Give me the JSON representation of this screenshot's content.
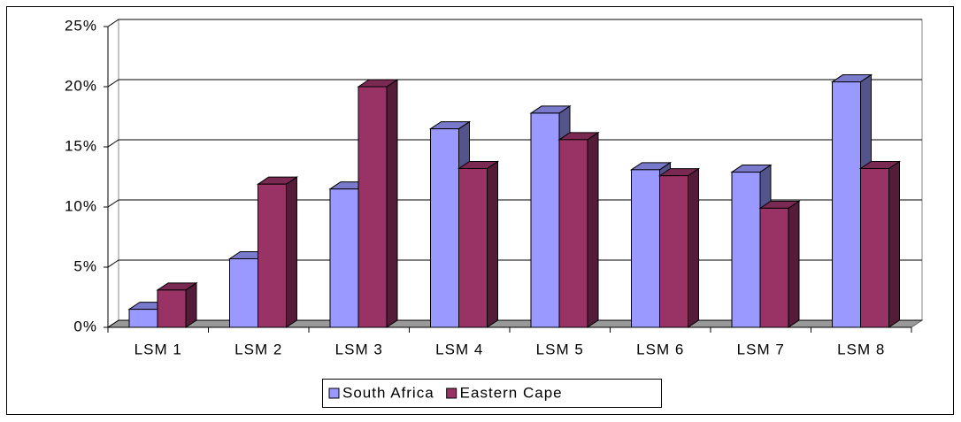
{
  "chart_data": {
    "type": "bar3d",
    "categories": [
      "LSM 1",
      "LSM 2",
      "LSM 3",
      "LSM 4",
      "LSM 5",
      "LSM 6",
      "LSM 7",
      "LSM 8"
    ],
    "series": [
      {
        "name": "South Africa",
        "color": "#9999ff",
        "values": [
          1.5,
          5.7,
          11.5,
          16.5,
          17.8,
          13.1,
          12.9,
          20.4
        ]
      },
      {
        "name": "Eastern Cape",
        "color": "#993366",
        "values": [
          3.1,
          11.9,
          20.0,
          13.2,
          15.6,
          12.6,
          9.9,
          13.2
        ]
      }
    ],
    "ylim": [
      0,
      25
    ],
    "yticks": [
      {
        "value": 0,
        "label": "0%"
      },
      {
        "value": 5,
        "label": "5%"
      },
      {
        "value": 10,
        "label": "10%"
      },
      {
        "value": 15,
        "label": "15%"
      },
      {
        "value": 20,
        "label": "20%"
      },
      {
        "value": 25,
        "label": "25%"
      }
    ],
    "grid": true,
    "legend": "bottom"
  }
}
